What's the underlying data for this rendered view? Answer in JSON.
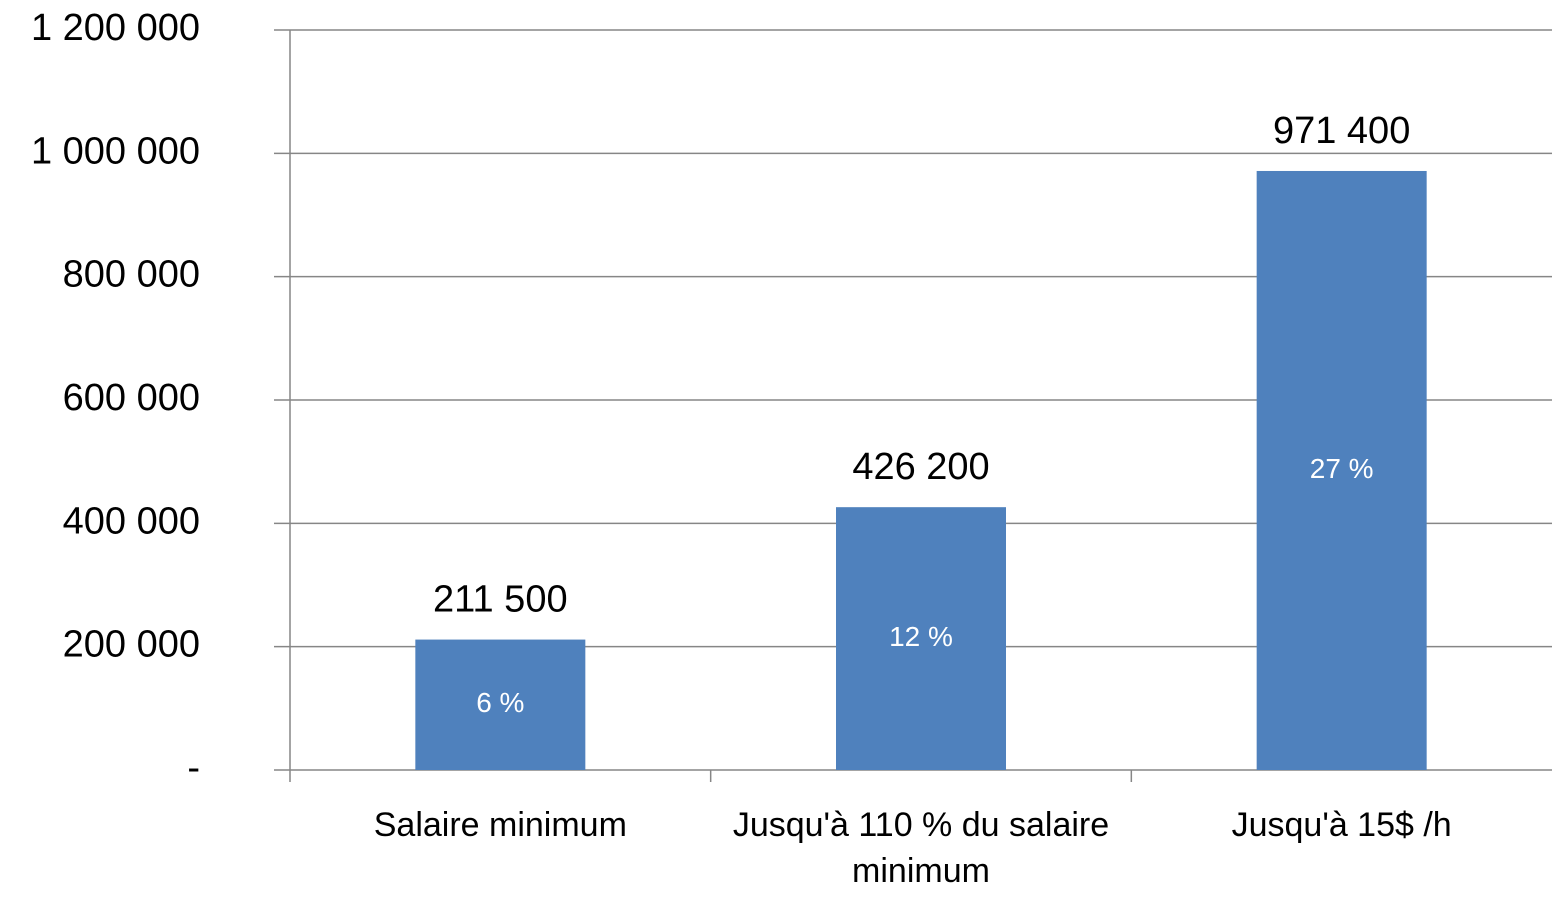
{
  "chart_data": {
    "type": "bar",
    "categories": [
      "Salaire minimum",
      "Jusqu'à 110 % du salaire minimum",
      "Jusqu'à 15$ /h"
    ],
    "values": [
      211500,
      426200,
      971400
    ],
    "value_labels": [
      "211 500",
      "426 200",
      "971 400"
    ],
    "bar_annotations": [
      "6 %",
      "12 %",
      "27 %"
    ],
    "color": "#4f81bd",
    "ylim": [
      0,
      1200000
    ],
    "yticks": [
      {
        "value": 0,
        "label": "-"
      },
      {
        "value": 200000,
        "label": "200 000"
      },
      {
        "value": 400000,
        "label": "400 000"
      },
      {
        "value": 600000,
        "label": "600 000"
      },
      {
        "value": 800000,
        "label": "800 000"
      },
      {
        "value": 1000000,
        "label": "1 000 000"
      },
      {
        "value": 1200000,
        "label": "1 200 000"
      }
    ],
    "grid": true
  }
}
